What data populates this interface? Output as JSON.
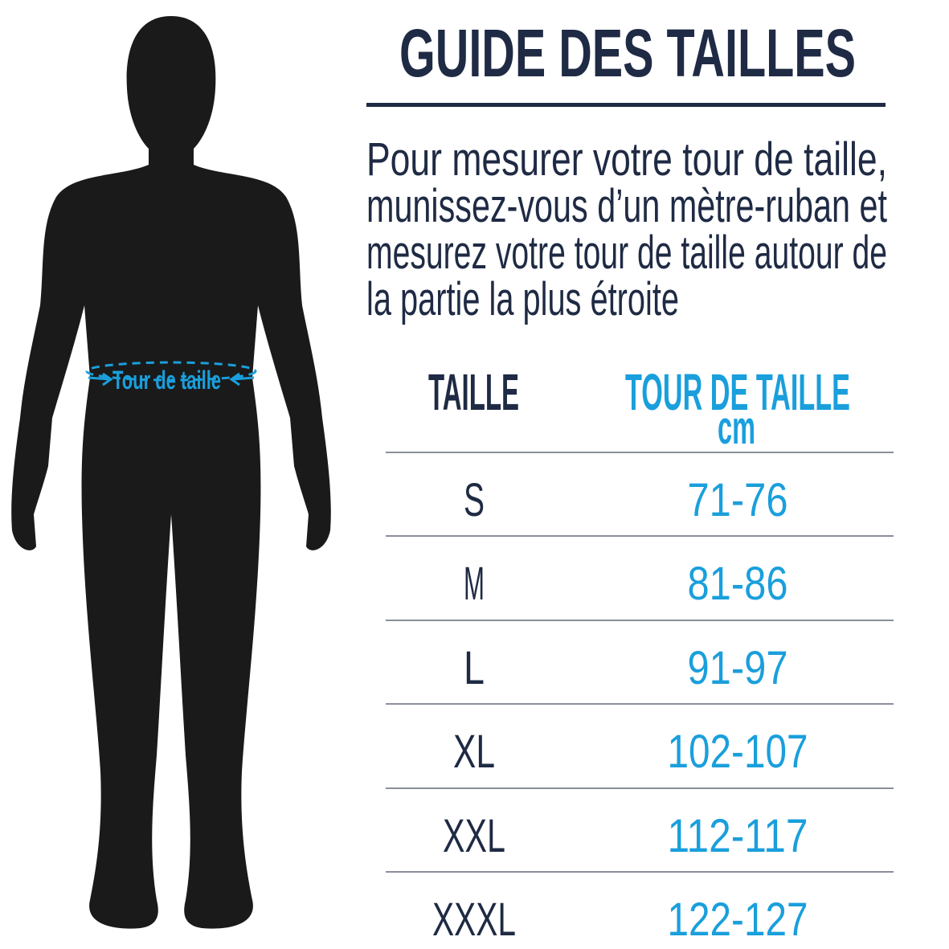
{
  "title": "GUIDE DES TAILLES",
  "instructions_lines": [
    "Pour mesurer votre tour de taille,",
    "munissez-vous d’un mètre-ruban et",
    "mesurez votre tour de taille autour de",
    "la partie la plus étroite"
  ],
  "figure": {
    "waist_label": "Tour de taille",
    "icon": "human-silhouette"
  },
  "table": {
    "headers": {
      "size": "TAILLE",
      "waist": "TOUR DE TAILLE",
      "unit": "cm"
    },
    "rows": [
      {
        "size": "S",
        "waist": "71-76"
      },
      {
        "size": "M",
        "waist": "81-86"
      },
      {
        "size": "L",
        "waist": "91-97"
      },
      {
        "size": "XL",
        "waist": "102-107"
      },
      {
        "size": "XXL",
        "waist": "112-117"
      },
      {
        "size": "XXXL",
        "waist": "122-127"
      }
    ]
  },
  "colors": {
    "navy": "#1f2a44",
    "blue": "#1a9fdc",
    "silhouette": "#1a1a1a"
  }
}
